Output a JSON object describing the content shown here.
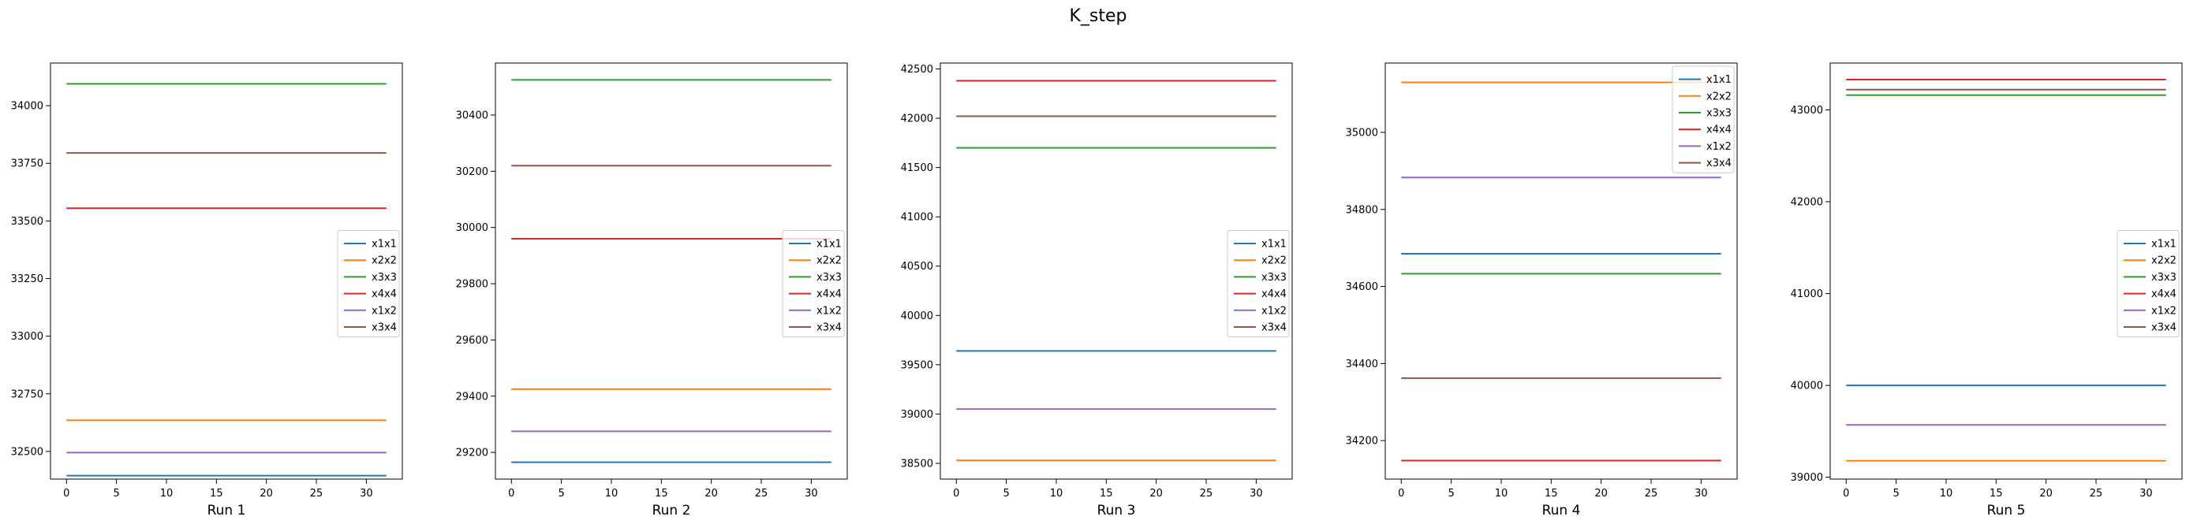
{
  "figure": {
    "suptitle": "K_step"
  },
  "chart_data": [
    {
      "type": "line",
      "xlabel": "Run 1",
      "xlim": [
        -1.6,
        33.6
      ],
      "ylim": [
        32380,
        34185
      ],
      "xticks": [
        0,
        5,
        10,
        15,
        20,
        25,
        30
      ],
      "yticks": [
        32500,
        32750,
        33000,
        33250,
        33500,
        33750,
        34000
      ],
      "x": [
        0,
        32
      ],
      "legend": "center-right",
      "series": [
        {
          "name": "x1x1",
          "color": "#1f77b4",
          "values": [
            32395,
            32395
          ]
        },
        {
          "name": "x2x2",
          "color": "#ff7f0e",
          "values": [
            32635,
            32635
          ]
        },
        {
          "name": "x3x3",
          "color": "#2ca02c",
          "values": [
            34095,
            34095
          ]
        },
        {
          "name": "x4x4",
          "color": "#d62728",
          "values": [
            33555,
            33555
          ]
        },
        {
          "name": "x1x2",
          "color": "#9467bd",
          "values": [
            32495,
            32495
          ]
        },
        {
          "name": "x3x4",
          "color": "#8c564b",
          "values": [
            33795,
            33795
          ]
        }
      ]
    },
    {
      "type": "line",
      "xlabel": "Run 2",
      "xlim": [
        -1.6,
        33.6
      ],
      "ylim": [
        29105,
        30585
      ],
      "xticks": [
        0,
        5,
        10,
        15,
        20,
        25,
        30
      ],
      "yticks": [
        29200,
        29400,
        29600,
        29800,
        30000,
        30200,
        30400
      ],
      "x": [
        0,
        32
      ],
      "legend": "center-right",
      "series": [
        {
          "name": "x1x1",
          "color": "#1f77b4",
          "values": [
            29165,
            29165
          ]
        },
        {
          "name": "x2x2",
          "color": "#ff7f0e",
          "values": [
            29425,
            29425
          ]
        },
        {
          "name": "x3x3",
          "color": "#2ca02c",
          "values": [
            30525,
            30525
          ]
        },
        {
          "name": "x4x4",
          "color": "#d62728",
          "values": [
            29960,
            29960
          ]
        },
        {
          "name": "x1x2",
          "color": "#9467bd",
          "values": [
            29275,
            29275
          ]
        },
        {
          "name": "x3x4",
          "color": "#8c564b",
          "values": [
            30220,
            30220
          ]
        }
      ]
    },
    {
      "type": "line",
      "xlabel": "Run 3",
      "xlim": [
        -1.6,
        33.6
      ],
      "ylim": [
        38340,
        42560
      ],
      "xticks": [
        0,
        5,
        10,
        15,
        20,
        25,
        30
      ],
      "yticks": [
        38500,
        39000,
        39500,
        40000,
        40500,
        41000,
        41500,
        42000,
        42500
      ],
      "x": [
        0,
        32
      ],
      "legend": "center-right",
      "series": [
        {
          "name": "x1x1",
          "color": "#1f77b4",
          "values": [
            39640,
            39640
          ]
        },
        {
          "name": "x2x2",
          "color": "#ff7f0e",
          "values": [
            38530,
            38530
          ]
        },
        {
          "name": "x3x3",
          "color": "#2ca02c",
          "values": [
            41700,
            41700
          ]
        },
        {
          "name": "x4x4",
          "color": "#d62728",
          "values": [
            42380,
            42380
          ]
        },
        {
          "name": "x1x2",
          "color": "#9467bd",
          "values": [
            39050,
            39050
          ]
        },
        {
          "name": "x3x4",
          "color": "#8c564b",
          "values": [
            42020,
            42020
          ]
        }
      ]
    },
    {
      "type": "line",
      "xlabel": "Run 4",
      "xlim": [
        -1.6,
        33.6
      ],
      "ylim": [
        34100,
        35180
      ],
      "xticks": [
        0,
        5,
        10,
        15,
        20,
        25,
        30
      ],
      "yticks": [
        34200,
        34400,
        34600,
        34800,
        35000
      ],
      "x": [
        0,
        32
      ],
      "legend": "upper-right",
      "series": [
        {
          "name": "x1x1",
          "color": "#1f77b4",
          "values": [
            34685,
            34685
          ]
        },
        {
          "name": "x2x2",
          "color": "#ff7f0e",
          "values": [
            35130,
            35130
          ]
        },
        {
          "name": "x3x3",
          "color": "#2ca02c",
          "values": [
            34633,
            34633
          ]
        },
        {
          "name": "x4x4",
          "color": "#d62728",
          "values": [
            34148,
            34148
          ]
        },
        {
          "name": "x1x2",
          "color": "#9467bd",
          "values": [
            34883,
            34883
          ]
        },
        {
          "name": "x3x4",
          "color": "#8c564b",
          "values": [
            34362,
            34362
          ]
        }
      ]
    },
    {
      "type": "line",
      "xlabel": "Run 5",
      "xlim": [
        -1.6,
        33.6
      ],
      "ylim": [
        38980,
        43510
      ],
      "xticks": [
        0,
        5,
        10,
        15,
        20,
        25,
        30
      ],
      "yticks": [
        39000,
        40000,
        41000,
        42000,
        43000
      ],
      "x": [
        0,
        32
      ],
      "legend": "center-right",
      "series": [
        {
          "name": "x1x1",
          "color": "#1f77b4",
          "values": [
            40000,
            40000
          ]
        },
        {
          "name": "x2x2",
          "color": "#ff7f0e",
          "values": [
            39180,
            39180
          ]
        },
        {
          "name": "x3x3",
          "color": "#2ca02c",
          "values": [
            43160,
            43160
          ]
        },
        {
          "name": "x4x4",
          "color": "#d62728",
          "values": [
            43330,
            43330
          ]
        },
        {
          "name": "x1x2",
          "color": "#9467bd",
          "values": [
            39570,
            39570
          ]
        },
        {
          "name": "x3x4",
          "color": "#8c564b",
          "values": [
            43220,
            43220
          ]
        }
      ]
    }
  ]
}
